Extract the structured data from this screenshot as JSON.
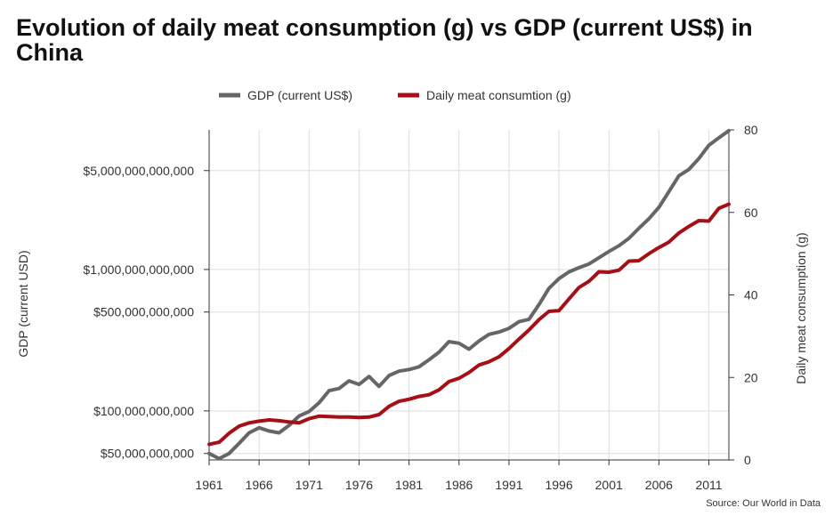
{
  "chart_data": {
    "type": "line",
    "title": "Evolution of daily meat consumption (g) vs GDP (current US$) in China",
    "source": "Source: Our World in Data",
    "x_range": [
      1961,
      2013
    ],
    "x_ticks": [
      1961,
      1966,
      1971,
      1976,
      1981,
      1986,
      1991,
      1996,
      2001,
      2006,
      2011
    ],
    "left_axis": {
      "label": "GDP (current USD)",
      "scale": "log",
      "range": [
        45000000000,
        9700000000000
      ],
      "ticks": [
        {
          "value": 50000000000,
          "label": "$50,000,000,000"
        },
        {
          "value": 100000000000,
          "label": "$100,000,000,000"
        },
        {
          "value": 500000000000,
          "label": "$500,000,000,000"
        },
        {
          "value": 1000000000000,
          "label": "$1,000,000,000,000"
        },
        {
          "value": 5000000000000,
          "label": "$5,000,000,000,000"
        }
      ]
    },
    "right_axis": {
      "label": "Daily meat consumption (g)",
      "scale": "linear",
      "range": [
        0,
        80
      ],
      "ticks": [
        {
          "value": 0,
          "label": "0"
        },
        {
          "value": 20,
          "label": "20"
        },
        {
          "value": 40,
          "label": "40"
        },
        {
          "value": 60,
          "label": "60"
        },
        {
          "value": 80,
          "label": "80"
        }
      ]
    },
    "grid": true,
    "legend_position": "top-center",
    "series": [
      {
        "name": "GDP (current US$)",
        "axis": "left",
        "color": "#666666",
        "x": [
          1961,
          1962,
          1963,
          1964,
          1965,
          1966,
          1967,
          1968,
          1969,
          1970,
          1971,
          1972,
          1973,
          1974,
          1975,
          1976,
          1977,
          1978,
          1979,
          1980,
          1981,
          1982,
          1983,
          1984,
          1985,
          1986,
          1987,
          1988,
          1989,
          1990,
          1991,
          1992,
          1993,
          1994,
          1995,
          1996,
          1997,
          1998,
          1999,
          2000,
          2001,
          2002,
          2003,
          2004,
          2005,
          2006,
          2007,
          2008,
          2009,
          2010,
          2011,
          2012,
          2013
        ],
        "values": [
          50000000000,
          46000000000,
          50000000000,
          59000000000,
          70000000000,
          76000000000,
          72000000000,
          70000000000,
          79000000000,
          92000000000,
          99000000000,
          114000000000,
          139000000000,
          144000000000,
          163000000000,
          154000000000,
          175000000000,
          149000000000,
          178000000000,
          191000000000,
          196000000000,
          205000000000,
          230000000000,
          260000000000,
          309000000000,
          301000000000,
          273000000000,
          312000000000,
          348000000000,
          361000000000,
          383000000000,
          427000000000,
          444000000000,
          564000000000,
          735000000000,
          861000000000,
          962000000000,
          1029000000000,
          1094000000000,
          1211000000000,
          1339000000000,
          1471000000000,
          1660000000000,
          1955000000000,
          2286000000000,
          2752000000000,
          3550000000000,
          4594000000000,
          5102000000000,
          6087000000000,
          7552000000000,
          8532000000000,
          9570000000000
        ]
      },
      {
        "name": "Daily meat consumtion (g)",
        "axis": "right",
        "color": "#a50f15",
        "x": [
          1961,
          1962,
          1963,
          1964,
          1965,
          1966,
          1967,
          1968,
          1969,
          1970,
          1971,
          1972,
          1973,
          1974,
          1975,
          1976,
          1977,
          1978,
          1979,
          1980,
          1981,
          1982,
          1983,
          1984,
          1985,
          1986,
          1987,
          1988,
          1989,
          1990,
          1991,
          1992,
          1993,
          1994,
          1995,
          1996,
          1997,
          1998,
          1999,
          2000,
          2001,
          2002,
          2003,
          2004,
          2005,
          2006,
          2007,
          2008,
          2009,
          2010,
          2011,
          2012,
          2013
        ],
        "values": [
          3.8,
          4.3,
          6.5,
          8.2,
          9.0,
          9.4,
          9.7,
          9.5,
          9.2,
          9.0,
          10.0,
          10.6,
          10.5,
          10.4,
          10.4,
          10.3,
          10.4,
          11.0,
          13.0,
          14.2,
          14.7,
          15.4,
          15.8,
          17.0,
          19.0,
          19.8,
          21.2,
          23.0,
          23.8,
          25.0,
          27.0,
          29.3,
          31.5,
          34.0,
          36.0,
          36.2,
          39.0,
          41.8,
          43.3,
          45.6,
          45.5,
          46.0,
          48.2,
          48.3,
          50.0,
          51.5,
          52.8,
          55.0,
          56.6,
          58.0,
          57.9,
          61.0,
          62.0
        ]
      }
    ]
  }
}
